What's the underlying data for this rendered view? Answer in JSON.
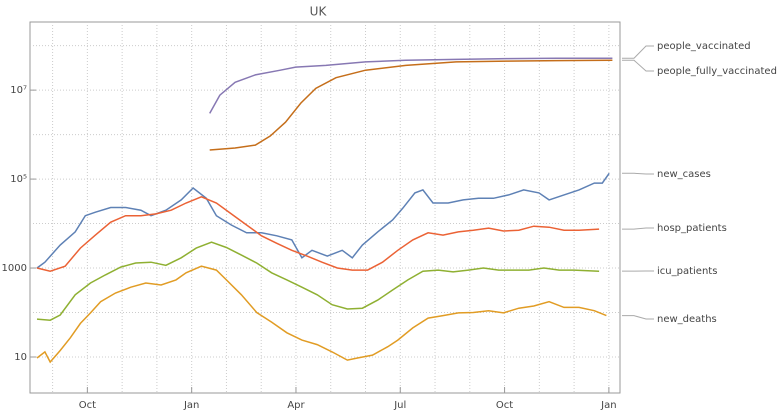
{
  "chart_data": {
    "type": "line",
    "title": "UK",
    "log_y": true,
    "grid": true,
    "xlim": [
      8.35,
      25.32
    ],
    "xticks": [
      {
        "value": 10,
        "label": "Oct"
      },
      {
        "value": 13,
        "label": "Jan"
      },
      {
        "value": 16,
        "label": "Apr"
      },
      {
        "value": 19,
        "label": "Jul"
      },
      {
        "value": 22,
        "label": "Oct"
      },
      {
        "value": 25,
        "label": "Jan"
      }
    ],
    "ylim": [
      1.55,
      340000000
    ],
    "yticks": [
      10,
      1000,
      {
        "value": 100000,
        "label": "10⁵"
      },
      {
        "value": 10000000,
        "label": "10⁷"
      }
    ],
    "series": [
      {
        "name": "people_vaccinated",
        "color": "#8778B3",
        "x": [
          13.52,
          13.81,
          14.25,
          14.83,
          15.55,
          15.99,
          16.86,
          18.0,
          19.16,
          20.61,
          22.06,
          23.51,
          25.1
        ],
        "values": [
          3000000,
          7700000,
          15000000,
          22000000,
          28000000,
          33000000,
          36000000,
          43000000,
          47000000,
          49000000,
          51000000,
          52000000,
          52000000
        ]
      },
      {
        "name": "people_fully_vaccinated",
        "color": "#C56E1A",
        "x": [
          13.52,
          14.25,
          14.83,
          15.26,
          15.7,
          16.14,
          16.57,
          17.15,
          18.0,
          19.16,
          20.61,
          22.06,
          23.51,
          25.1
        ],
        "values": [
          450000,
          500000,
          580000,
          930000,
          1900000,
          5100000,
          11000000,
          19000000,
          28000000,
          36000000,
          43000000,
          45000000,
          46000000,
          47000000
        ]
      },
      {
        "name": "new_cases",
        "color": "#5E81B5",
        "x": [
          8.55,
          8.78,
          9.22,
          9.65,
          9.94,
          10.23,
          10.67,
          11.1,
          11.54,
          11.83,
          12.26,
          12.7,
          13.04,
          13.42,
          13.71,
          14.14,
          14.58,
          15.01,
          15.45,
          15.88,
          16.17,
          16.46,
          16.9,
          17.33,
          17.62,
          17.91,
          18.35,
          18.78,
          19.07,
          19.42,
          19.65,
          19.94,
          20.38,
          20.81,
          21.25,
          21.68,
          22.12,
          22.55,
          22.99,
          23.28,
          23.71,
          24.14,
          24.58,
          24.81,
          25.01
        ],
        "values": [
          1000,
          1350,
          3300,
          6500,
          15000,
          18000,
          23000,
          23000,
          20000,
          15000,
          20000,
          34000,
          63000,
          37000,
          15000,
          9300,
          6200,
          6200,
          5300,
          4300,
          1700,
          2500,
          1850,
          2500,
          1700,
          3300,
          6500,
          12000,
          22000,
          49000,
          57000,
          29000,
          29000,
          34000,
          37000,
          37000,
          44000,
          57000,
          49000,
          34000,
          44000,
          57000,
          81000,
          81000,
          135000
        ]
      },
      {
        "name": "hosp_patients",
        "color": "#EB6235",
        "x": [
          8.55,
          8.93,
          9.36,
          9.8,
          10.23,
          10.67,
          11.1,
          11.54,
          11.97,
          12.41,
          12.84,
          13.28,
          13.71,
          14.14,
          14.58,
          15.01,
          15.45,
          15.88,
          16.32,
          16.75,
          17.19,
          17.62,
          18.06,
          18.49,
          18.93,
          19.36,
          19.8,
          20.23,
          20.67,
          21.1,
          21.54,
          21.97,
          22.41,
          22.84,
          23.28,
          23.71,
          24.14,
          24.72
        ],
        "values": [
          1000,
          850,
          1100,
          2800,
          5500,
          10700,
          15000,
          15000,
          16500,
          20000,
          29000,
          40000,
          29000,
          16500,
          9300,
          5300,
          3600,
          2500,
          1850,
          1350,
          1000,
          900,
          900,
          1350,
          2500,
          4300,
          6200,
          5500,
          6500,
          7100,
          7900,
          6800,
          7100,
          8700,
          8300,
          7100,
          7100,
          7500
        ]
      },
      {
        "name": "icu_patients",
        "color": "#8FB032",
        "x": [
          8.55,
          8.93,
          9.22,
          9.65,
          10.09,
          10.52,
          10.96,
          11.39,
          11.83,
          12.26,
          12.7,
          13.13,
          13.57,
          14.0,
          14.43,
          14.87,
          15.3,
          15.74,
          16.17,
          16.61,
          17.04,
          17.48,
          17.91,
          18.35,
          18.78,
          19.22,
          19.65,
          20.09,
          20.52,
          20.96,
          21.39,
          21.83,
          22.26,
          22.7,
          23.13,
          23.57,
          24.0,
          24.72
        ],
        "values": [
          71,
          67,
          88,
          250,
          460,
          700,
          1050,
          1300,
          1350,
          1150,
          1700,
          2800,
          3800,
          2900,
          1950,
          1300,
          780,
          540,
          370,
          250,
          150,
          120,
          125,
          190,
          320,
          540,
          850,
          900,
          820,
          900,
          1000,
          900,
          900,
          900,
          1000,
          900,
          900,
          850
        ]
      },
      {
        "name": "new_deaths",
        "color": "#E19C24",
        "x": [
          8.55,
          8.78,
          8.93,
          9.22,
          9.51,
          9.8,
          10.09,
          10.38,
          10.81,
          11.25,
          11.68,
          12.12,
          12.55,
          12.84,
          13.28,
          13.71,
          14.0,
          14.43,
          14.87,
          15.3,
          15.74,
          16.17,
          16.61,
          17.04,
          17.48,
          17.77,
          18.2,
          18.64,
          18.93,
          19.36,
          19.8,
          20.23,
          20.67,
          21.1,
          21.54,
          21.97,
          22.41,
          22.84,
          23.28,
          23.71,
          24.14,
          24.58,
          24.93
        ],
        "values": [
          9.5,
          13,
          7.7,
          14,
          27,
          57,
          98,
          175,
          275,
          370,
          460,
          415,
          540,
          780,
          1100,
          900,
          540,
          250,
          100,
          61,
          35,
          24,
          19,
          13,
          8.5,
          9.5,
          11,
          17,
          24,
          45,
          75,
          85,
          98,
          100,
          110,
          98,
          125,
          140,
          175,
          130,
          130,
          110,
          85
        ]
      }
    ]
  }
}
